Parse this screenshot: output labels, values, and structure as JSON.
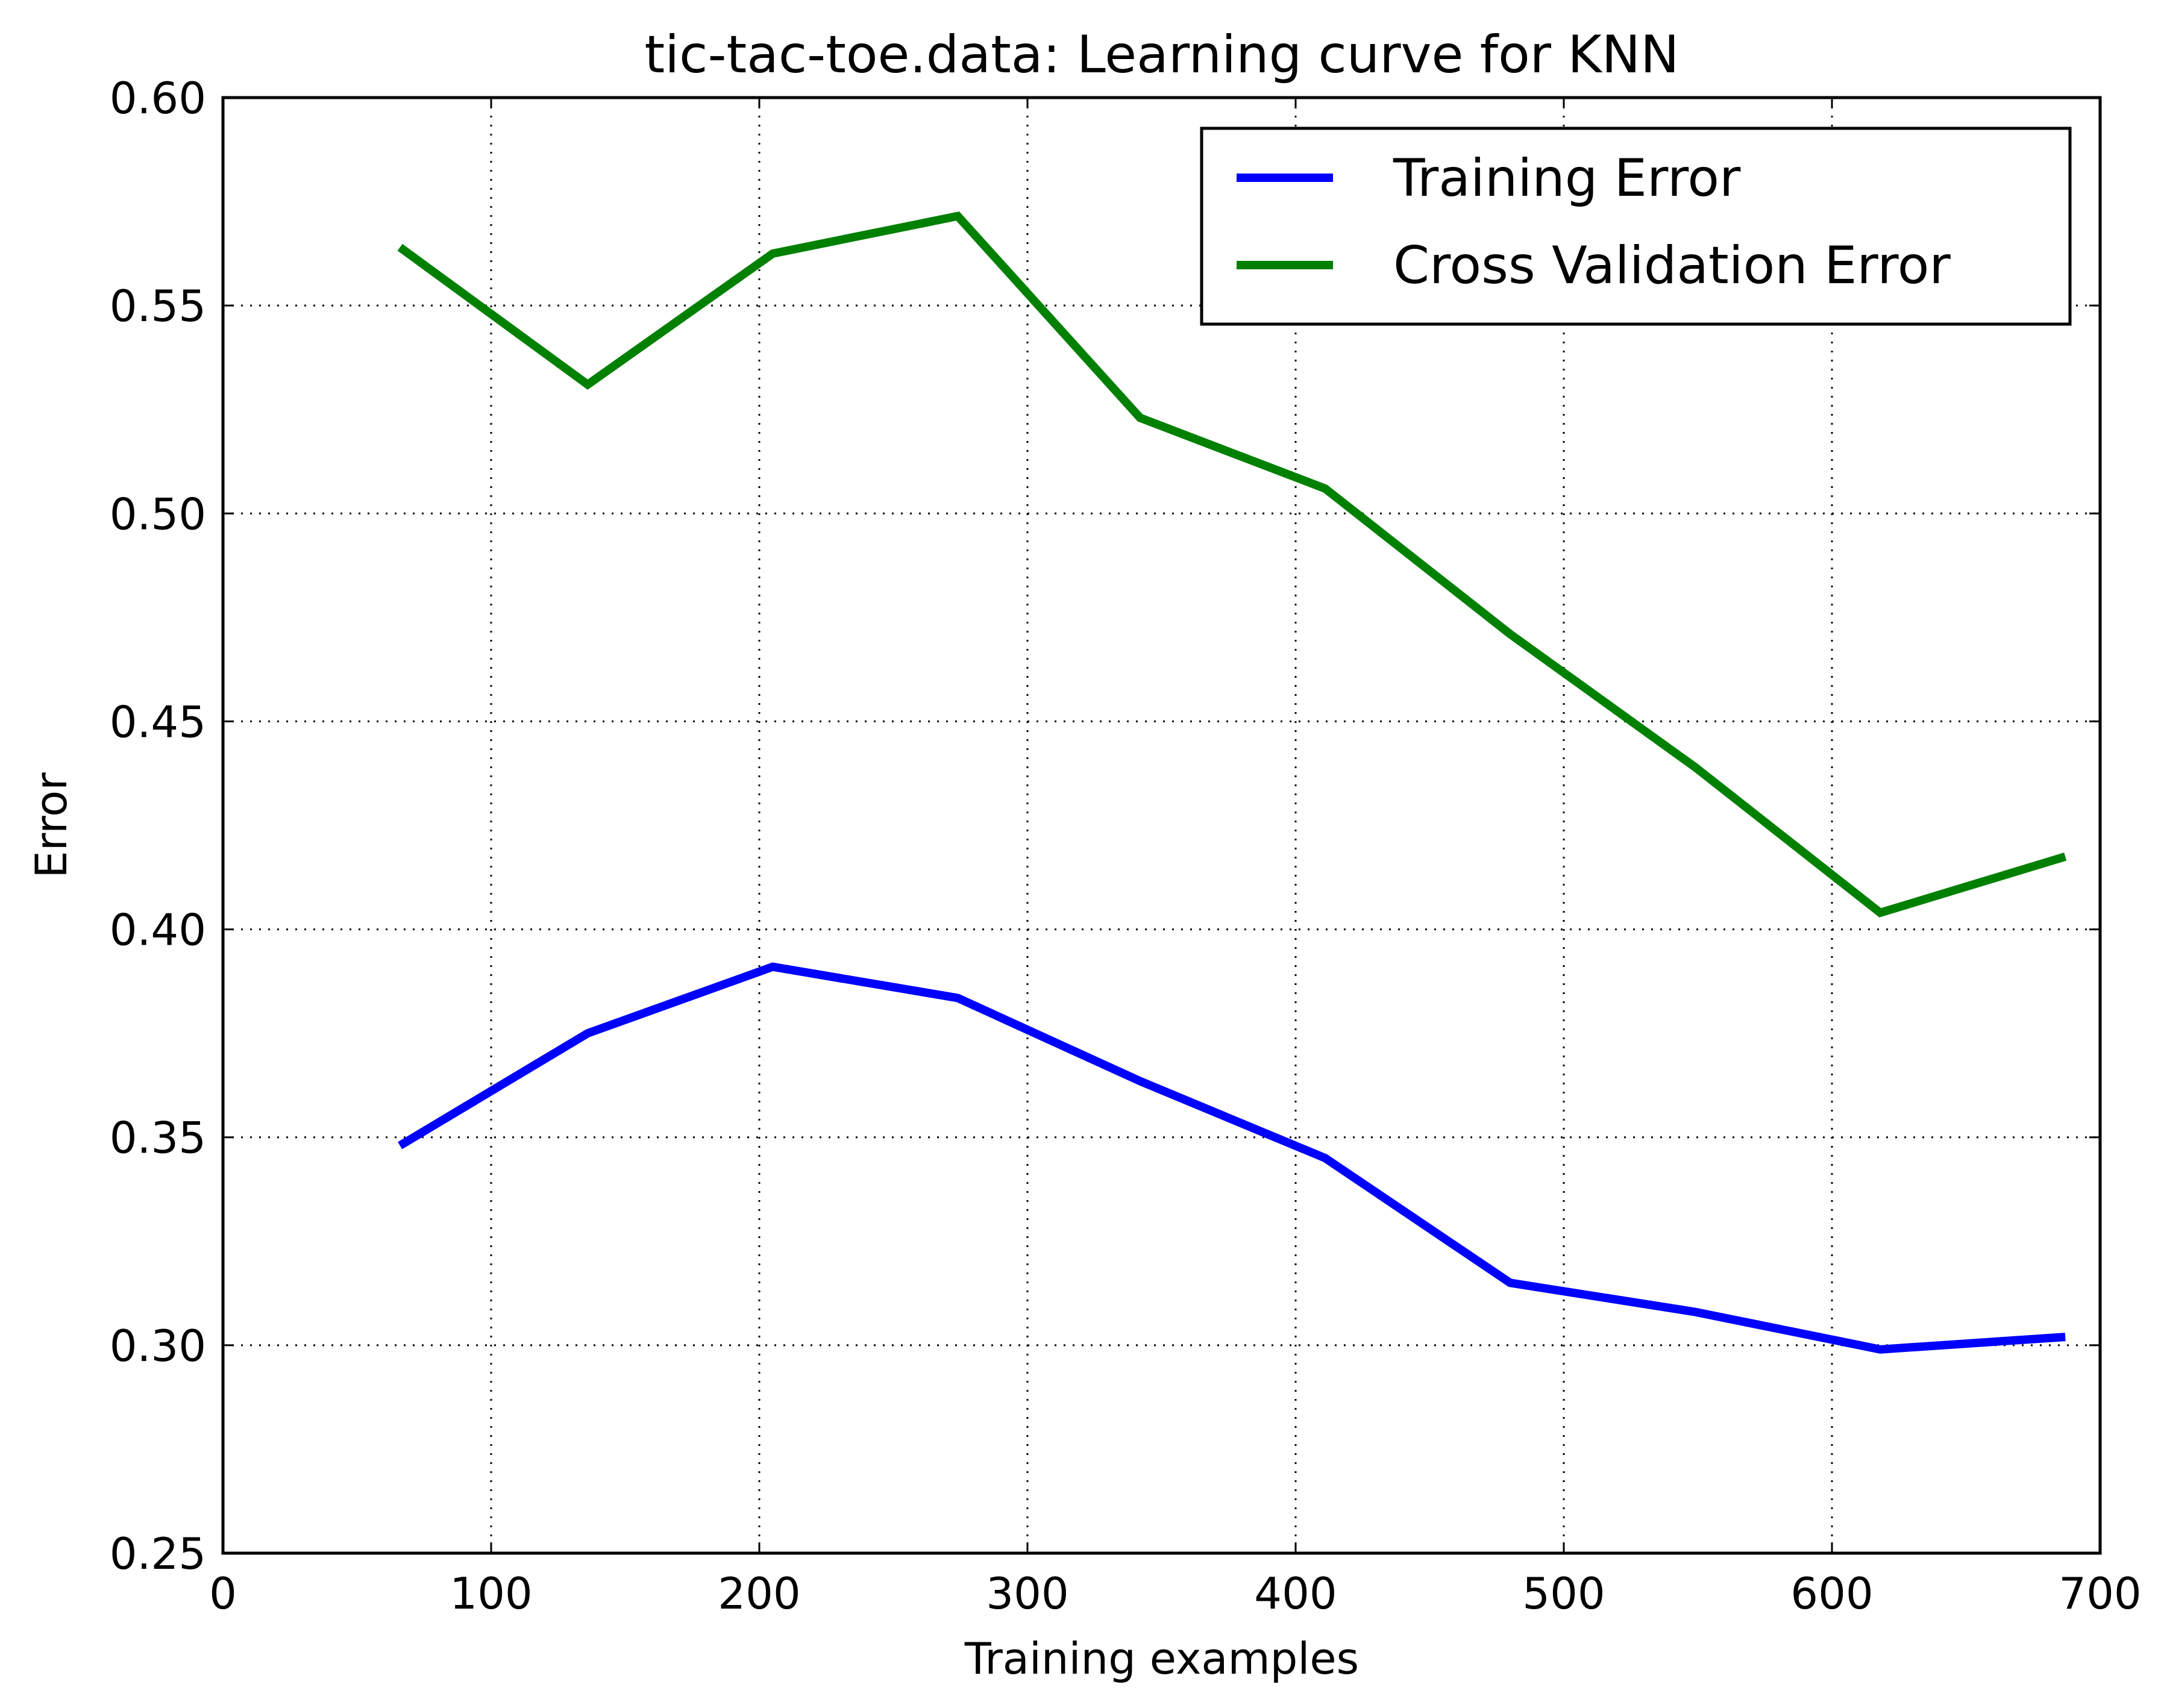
{
  "chart_data": {
    "type": "line",
    "title": "tic-tac-toe.data: Learning curve for KNN",
    "xlabel": "Training examples",
    "ylabel": "Error",
    "xlim": [
      0,
      700
    ],
    "ylim": [
      0.25,
      0.6
    ],
    "xticks": [
      "0",
      "100",
      "200",
      "300",
      "400",
      "500",
      "600",
      "700"
    ],
    "yticks": [
      "0.25",
      "0.30",
      "0.35",
      "0.40",
      "0.45",
      "0.50",
      "0.55",
      "0.60"
    ],
    "grid": true,
    "legend_position": "top-right",
    "x": [
      66,
      136,
      205,
      274,
      342,
      411,
      480,
      549,
      618,
      687
    ],
    "series": [
      {
        "name": "Training Error",
        "color": "#0000ff",
        "values": [
          0.348,
          0.375,
          0.391,
          0.3835,
          0.3635,
          0.345,
          0.315,
          0.308,
          0.299,
          0.302
        ]
      },
      {
        "name": "Cross Validation Error",
        "color": "#008000",
        "values": [
          0.564,
          0.531,
          0.5625,
          0.5715,
          0.523,
          0.506,
          0.471,
          0.439,
          0.404,
          0.4175
        ]
      }
    ]
  }
}
